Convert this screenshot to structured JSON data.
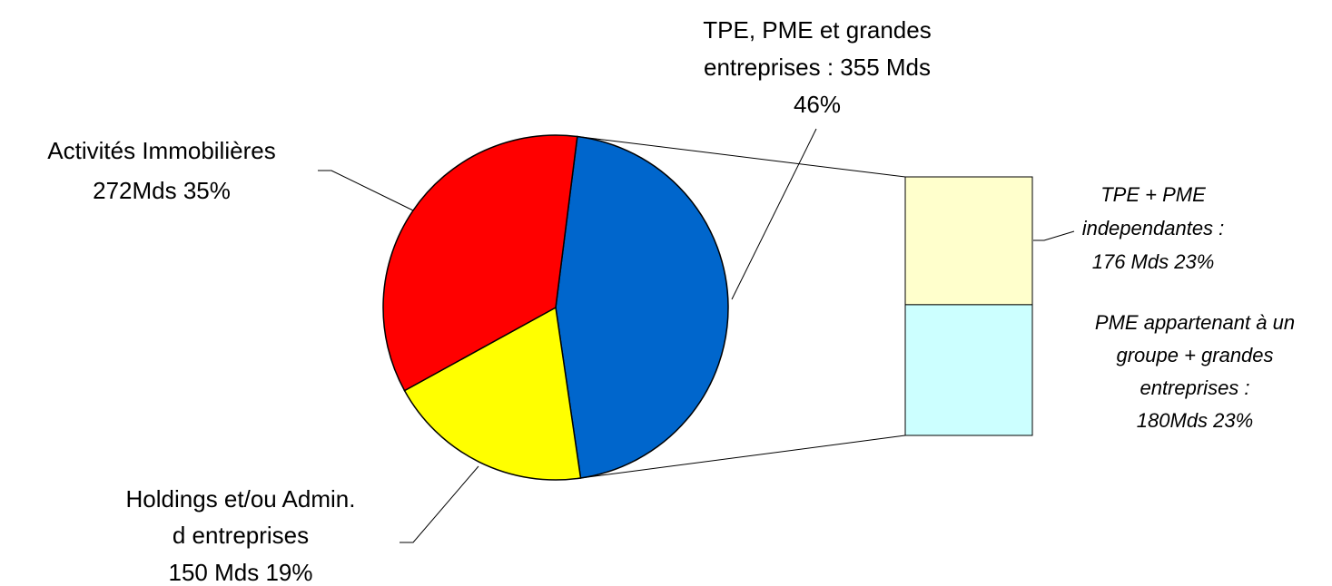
{
  "chart_data": {
    "type": "pie-of-bar",
    "values": [
      355,
      150,
      272
    ],
    "colors": [
      "#0066cc",
      "#ffff00",
      "#ff0000"
    ],
    "labels": [
      [
        "TPE, PME et grandes",
        "entreprises : 355 Mds",
        "46%"
      ],
      [
        "Holdings et/ou Admin.",
        "d entreprises",
        "150 Mds 19%"
      ],
      [
        "Activités Immobilières",
        "272Mds  35%"
      ]
    ],
    "bar": {
      "values": [
        176,
        180
      ],
      "colors": [
        "#ffffcc",
        "#ccffff"
      ],
      "labels": [
        [
          "TPE + PME",
          "independantes :",
          "176 Mds  23%"
        ],
        [
          "PME appartenant à un",
          "groupe + grandes",
          "entreprises :",
          "180Mds 23%"
        ]
      ]
    }
  }
}
